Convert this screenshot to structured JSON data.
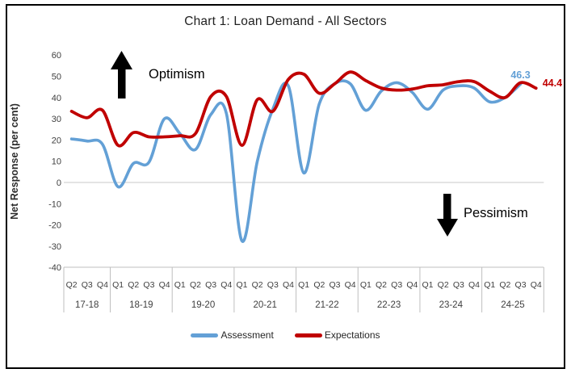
{
  "frame": {
    "title": "Chart 1: Loan Demand - All Sectors"
  },
  "chart_data": {
    "type": "line",
    "title": "Chart 1: Loan Demand - All Sectors",
    "xlabel": "",
    "ylabel": "Net Response (per cent)",
    "ylim": [
      -40,
      60
    ],
    "y_ticks": [
      60,
      50,
      40,
      30,
      20,
      10,
      0,
      -10,
      -20,
      -30,
      -40
    ],
    "gridlines": "zero-line-only",
    "legend_position": "bottom",
    "quarter_labels": [
      "Q2",
      "Q3",
      "Q4",
      "Q1",
      "Q2",
      "Q3",
      "Q4",
      "Q1",
      "Q2",
      "Q3",
      "Q4",
      "Q1",
      "Q2",
      "Q3",
      "Q4",
      "Q1",
      "Q2",
      "Q3",
      "Q4",
      "Q1",
      "Q2",
      "Q3",
      "Q4",
      "Q1",
      "Q2",
      "Q3",
      "Q4",
      "Q1",
      "Q2",
      "Q3",
      "Q4"
    ],
    "year_groups": [
      {
        "label": "17-18",
        "quarters": 3
      },
      {
        "label": "18-19",
        "quarters": 4
      },
      {
        "label": "19-20",
        "quarters": 4
      },
      {
        "label": "20-21",
        "quarters": 4
      },
      {
        "label": "21-22",
        "quarters": 4
      },
      {
        "label": "22-23",
        "quarters": 4
      },
      {
        "label": "23-24",
        "quarters": 4
      },
      {
        "label": "24-25",
        "quarters": 4
      }
    ],
    "series": [
      {
        "name": "Assessment",
        "color": "#63A0D6",
        "values": [
          20.5,
          19.5,
          18,
          -2,
          9,
          9.5,
          30,
          23,
          15.5,
          32,
          32.5,
          -27.5,
          10,
          34.5,
          45.5,
          4.5,
          37,
          46.5,
          46.5,
          34,
          43,
          47,
          42.5,
          34.5,
          43.5,
          45.5,
          44.5,
          38,
          40,
          46.3
        ],
        "end_label": "46.3"
      },
      {
        "name": "Expectations",
        "color": "#C00000",
        "values": [
          33.5,
          30.5,
          34,
          17.5,
          23.5,
          21.5,
          21.5,
          22,
          23,
          40.5,
          40.5,
          17.5,
          39,
          33.5,
          48.5,
          51,
          42,
          46.5,
          52,
          48,
          44.5,
          43.5,
          44,
          45.5,
          46,
          47.5,
          47.5,
          43,
          40,
          47,
          44.4
        ],
        "end_label": "44.4"
      }
    ],
    "annotations": [
      {
        "text": "Optimism",
        "direction": "up"
      },
      {
        "text": "Pessimism",
        "direction": "down"
      }
    ],
    "axis_colors": {
      "tick_text": "#3f3f3f",
      "grid": "#c9c9c9",
      "separator": "#bfbfbf"
    }
  }
}
